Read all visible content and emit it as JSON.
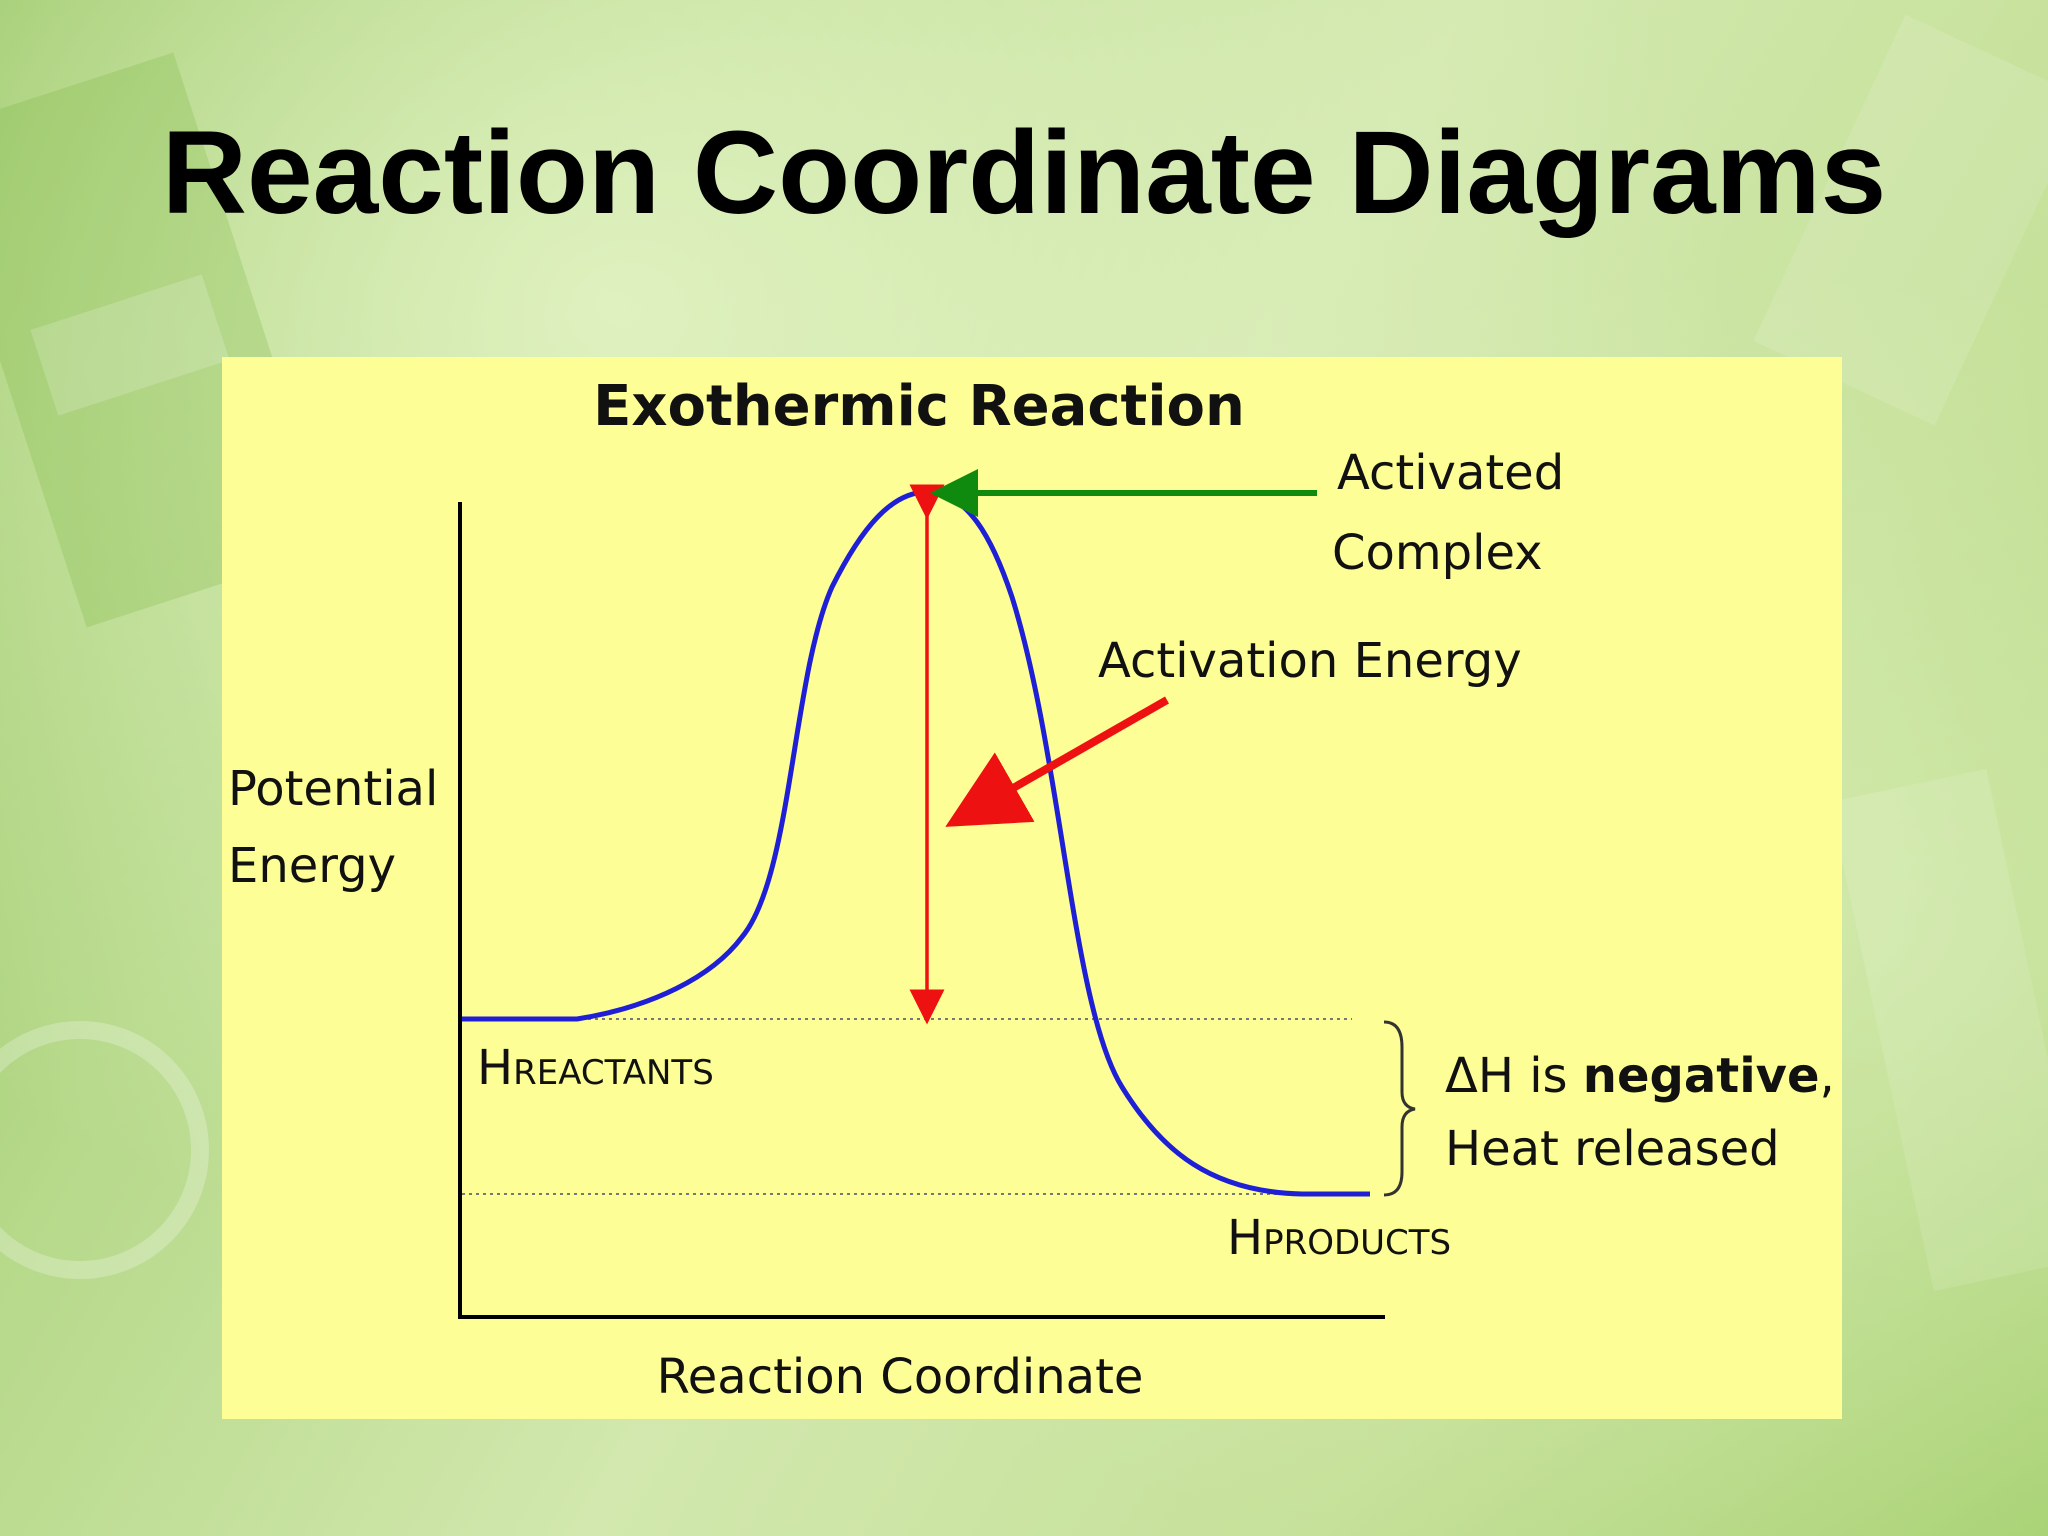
{
  "slide": {
    "title": "Reaction Coordinate Diagrams"
  },
  "diagram": {
    "title": "Exothermic Reaction",
    "y_axis_label": [
      "Potential",
      "Energy"
    ],
    "x_axis_label": "Reaction Coordinate",
    "activated_complex_label": [
      "Activated",
      "Complex"
    ],
    "activation_energy_label": "Activation Energy",
    "h_reactants": {
      "main": "H",
      "sub": "REACTANTS"
    },
    "h_products": {
      "main": "H",
      "sub": "PRODUCTS"
    },
    "delta_h": {
      "line1_prefix": "ΔH is ",
      "line1_bold": "negative",
      "line1_suffix": ",",
      "line2": "Heat released"
    },
    "colors": {
      "curve": "#1f1fd6",
      "activation_arrows": "#ee1111",
      "complex_arrow": "#0f8a0f",
      "panel_background": "#fefe96"
    }
  }
}
